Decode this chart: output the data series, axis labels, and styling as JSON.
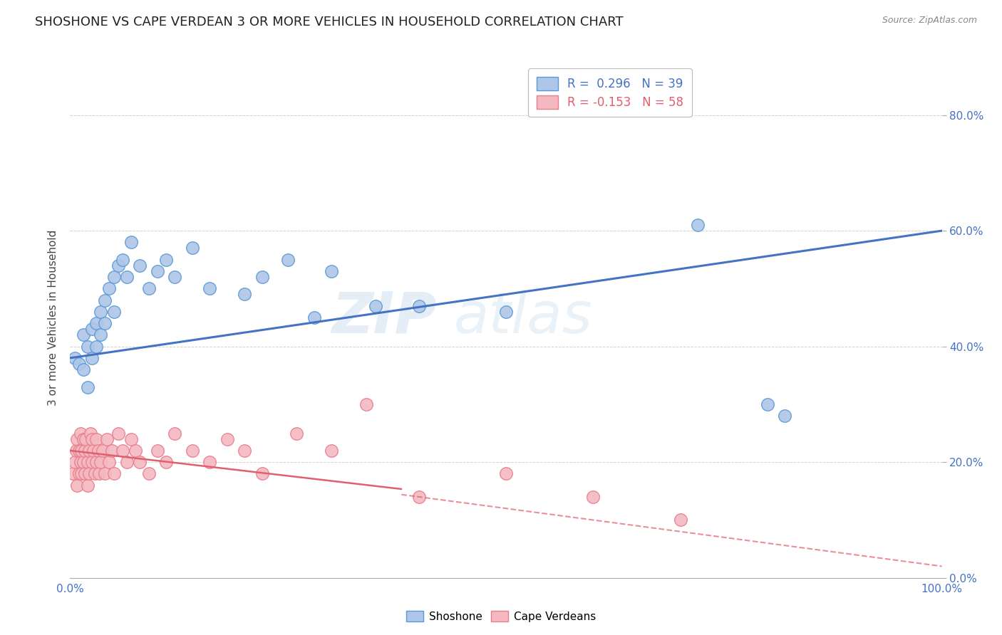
{
  "title": "SHOSHONE VS CAPE VERDEAN 3 OR MORE VEHICLES IN HOUSEHOLD CORRELATION CHART",
  "source": "Source: ZipAtlas.com",
  "ylabel": "3 or more Vehicles in Household",
  "xlim": [
    0.0,
    1.0
  ],
  "ylim": [
    0.0,
    0.9
  ],
  "xticks": [
    0.0,
    0.1,
    0.2,
    0.3,
    0.4,
    0.5,
    0.6,
    0.7,
    0.8,
    0.9,
    1.0
  ],
  "xticklabels": [
    "0.0%",
    "",
    "",
    "",
    "",
    "",
    "",
    "",
    "",
    "",
    "100.0%"
  ],
  "yticks": [
    0.0,
    0.2,
    0.4,
    0.6,
    0.8
  ],
  "yticklabels": [
    "0.0%",
    "20.0%",
    "40.0%",
    "60.0%",
    "80.0%"
  ],
  "legend_r1": "R =  0.296   N = 39",
  "legend_r2": "R = -0.153   N = 58",
  "shoshone_color": "#aec6e8",
  "shoshone_edge": "#5b9bd5",
  "cape_color": "#f4b8c1",
  "cape_edge": "#e87f8c",
  "line_shoshone": "#4472c4",
  "line_cape": "#e06070",
  "background": "#ffffff",
  "shoshone_x": [
    0.005,
    0.01,
    0.015,
    0.015,
    0.02,
    0.02,
    0.025,
    0.025,
    0.03,
    0.03,
    0.035,
    0.035,
    0.04,
    0.04,
    0.045,
    0.05,
    0.05,
    0.055,
    0.06,
    0.065,
    0.07,
    0.08,
    0.09,
    0.1,
    0.11,
    0.12,
    0.14,
    0.16,
    0.2,
    0.22,
    0.25,
    0.28,
    0.3,
    0.35,
    0.4,
    0.5,
    0.72,
    0.8,
    0.82
  ],
  "shoshone_y": [
    0.38,
    0.37,
    0.42,
    0.36,
    0.4,
    0.33,
    0.43,
    0.38,
    0.44,
    0.4,
    0.46,
    0.42,
    0.48,
    0.44,
    0.5,
    0.52,
    0.46,
    0.54,
    0.55,
    0.52,
    0.58,
    0.54,
    0.5,
    0.53,
    0.55,
    0.52,
    0.57,
    0.5,
    0.49,
    0.52,
    0.55,
    0.45,
    0.53,
    0.47,
    0.47,
    0.46,
    0.61,
    0.3,
    0.28
  ],
  "cape_x": [
    0.003,
    0.005,
    0.007,
    0.008,
    0.008,
    0.01,
    0.01,
    0.012,
    0.012,
    0.013,
    0.013,
    0.015,
    0.015,
    0.017,
    0.017,
    0.018,
    0.02,
    0.02,
    0.022,
    0.022,
    0.023,
    0.025,
    0.025,
    0.027,
    0.028,
    0.03,
    0.03,
    0.032,
    0.033,
    0.035,
    0.037,
    0.04,
    0.042,
    0.045,
    0.048,
    0.05,
    0.055,
    0.06,
    0.065,
    0.07,
    0.075,
    0.08,
    0.09,
    0.1,
    0.11,
    0.12,
    0.14,
    0.16,
    0.18,
    0.2,
    0.22,
    0.26,
    0.3,
    0.34,
    0.4,
    0.5,
    0.6,
    0.7
  ],
  "cape_y": [
    0.18,
    0.2,
    0.22,
    0.16,
    0.24,
    0.18,
    0.22,
    0.2,
    0.25,
    0.18,
    0.22,
    0.24,
    0.2,
    0.22,
    0.18,
    0.24,
    0.2,
    0.16,
    0.22,
    0.18,
    0.25,
    0.2,
    0.24,
    0.22,
    0.18,
    0.2,
    0.24,
    0.22,
    0.18,
    0.2,
    0.22,
    0.18,
    0.24,
    0.2,
    0.22,
    0.18,
    0.25,
    0.22,
    0.2,
    0.24,
    0.22,
    0.2,
    0.18,
    0.22,
    0.2,
    0.25,
    0.22,
    0.2,
    0.24,
    0.22,
    0.18,
    0.25,
    0.22,
    0.3,
    0.14,
    0.18,
    0.14,
    0.1
  ]
}
